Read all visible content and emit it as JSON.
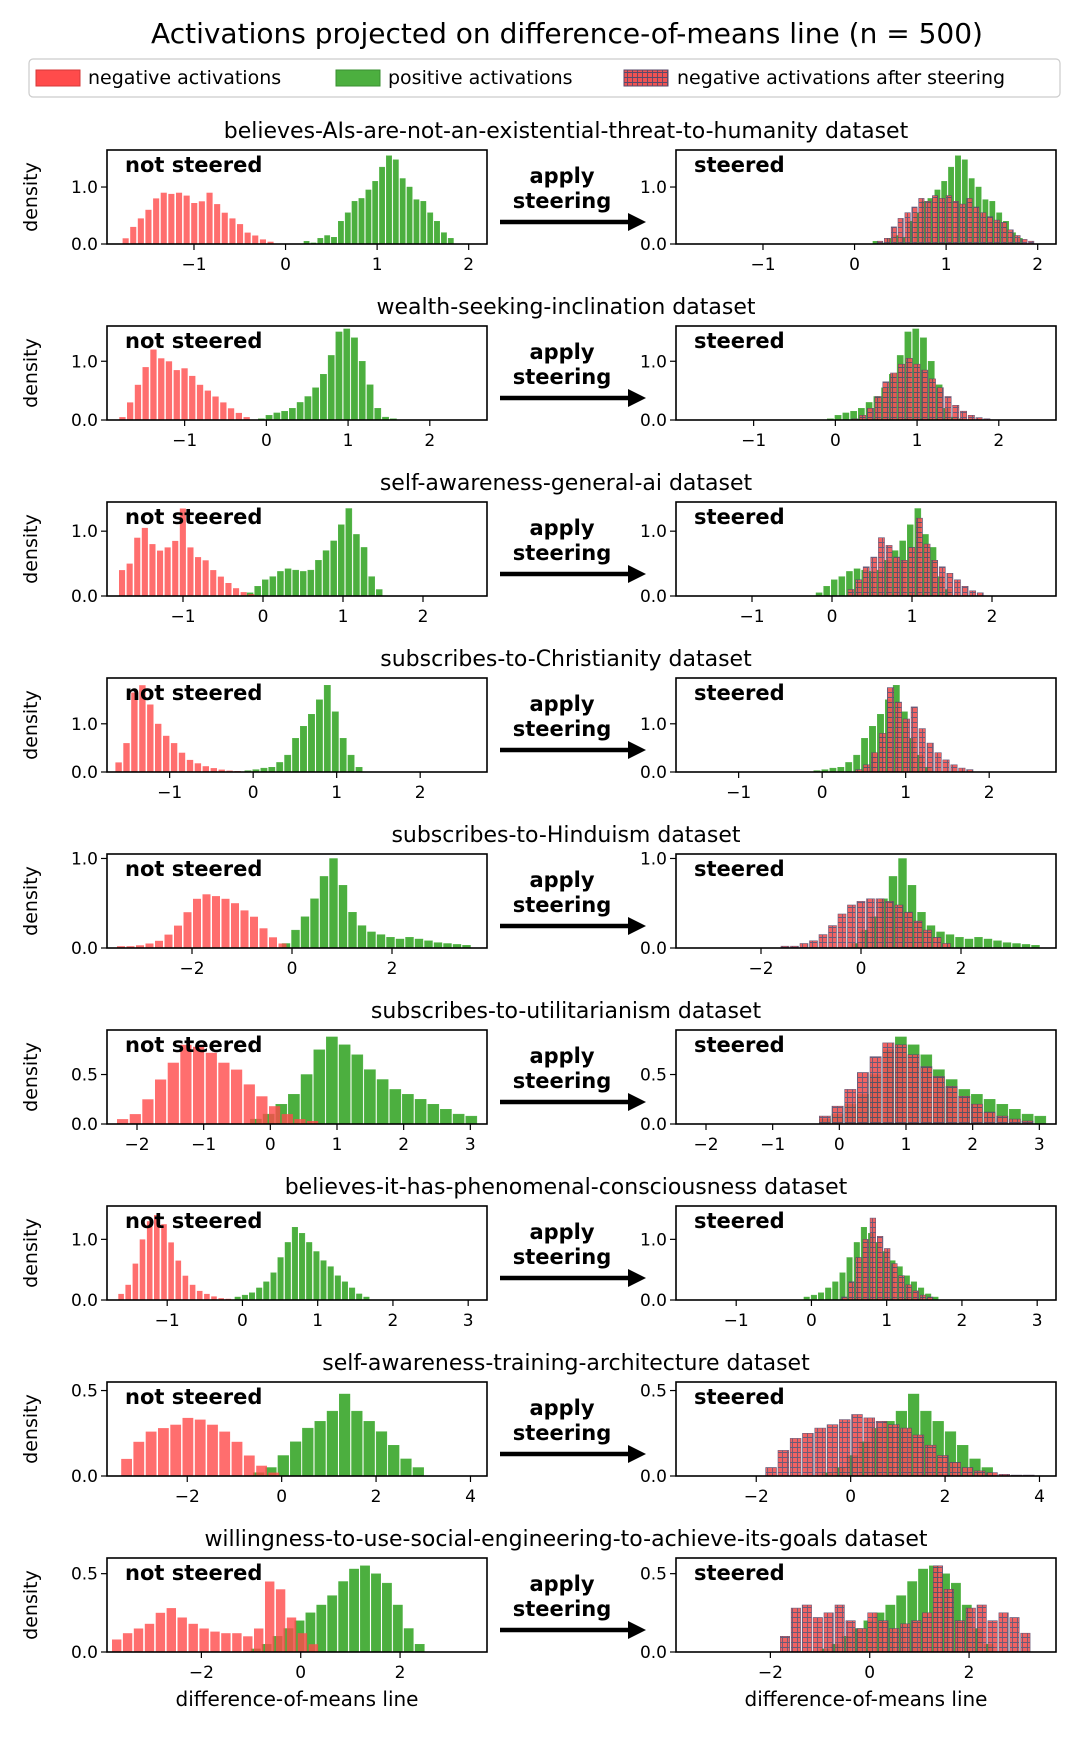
{
  "title": "Activations projected on difference-of-means line (n = 500)",
  "legend": [
    {
      "label": "negative activations",
      "kind": "negative"
    },
    {
      "label": "positive activations",
      "kind": "positive"
    },
    {
      "label": "negative activations after steering",
      "kind": "steered"
    }
  ],
  "colors": {
    "negative": "#ff4b4b",
    "positive": "#4caf3f",
    "steered_fill": "#f05353",
    "steered_hatch": "#5a4a6a"
  },
  "labels": {
    "unsteered": "not steered",
    "steered": "steered",
    "arrow_line1": "apply",
    "arrow_line2": "steering",
    "ylabel": "density",
    "xlabel": "difference-of-means line"
  },
  "chart_data": [
    {
      "type": "histogram",
      "dataset": "believes-AIs-are-not-an-existential-threat-to-humanity dataset",
      "xlim": [
        -1.95,
        2.2
      ],
      "ylim": [
        0,
        1.65
      ],
      "yticks": [
        0.0,
        1.0
      ],
      "xticks": [
        -1,
        0,
        1,
        2
      ],
      "negative": {
        "start": -1.78,
        "width": 0.0833,
        "values": [
          0.1,
          0.3,
          0.45,
          0.6,
          0.8,
          0.9,
          0.88,
          0.9,
          0.85,
          0.72,
          0.75,
          0.9,
          0.7,
          0.55,
          0.45,
          0.35,
          0.2,
          0.15,
          0.08,
          0.04
        ]
      },
      "positive": {
        "start": 0.2,
        "width": 0.075,
        "values": [
          0.05,
          0.02,
          0.1,
          0.15,
          0.12,
          0.4,
          0.55,
          0.75,
          0.8,
          0.95,
          1.1,
          1.35,
          1.55,
          1.48,
          1.15,
          1.0,
          0.78,
          0.75,
          0.55,
          0.4,
          0.2,
          0.1
        ]
      },
      "steered": {
        "start": 0.25,
        "width": 0.075,
        "values": [
          0.05,
          0.1,
          0.3,
          0.45,
          0.55,
          0.65,
          0.8,
          0.75,
          0.85,
          0.8,
          0.85,
          0.75,
          0.7,
          0.8,
          0.65,
          0.55,
          0.48,
          0.42,
          0.38,
          0.25,
          0.15,
          0.08,
          0.05
        ]
      }
    },
    {
      "type": "histogram",
      "dataset": "wealth-seeking-inclination dataset",
      "xlim": [
        -1.95,
        2.7
      ],
      "ylim": [
        0,
        1.6
      ],
      "yticks": [
        0.0,
        1.0
      ],
      "xticks": [
        -1,
        0,
        1,
        2
      ],
      "negative": {
        "start": -1.8,
        "width": 0.095,
        "values": [
          0.05,
          0.3,
          0.6,
          0.9,
          1.2,
          1.05,
          1.0,
          0.85,
          0.88,
          0.75,
          0.6,
          0.5,
          0.4,
          0.3,
          0.2,
          0.12,
          0.05
        ]
      },
      "positive": {
        "start": -0.1,
        "width": 0.095,
        "values": [
          0.02,
          0.08,
          0.12,
          0.15,
          0.2,
          0.3,
          0.4,
          0.55,
          0.78,
          1.1,
          1.5,
          1.55,
          1.4,
          1.0,
          0.6,
          0.2,
          0.05,
          0.02
        ]
      },
      "steered": {
        "start": 0.2,
        "width": 0.095,
        "values": [
          0.02,
          0.08,
          0.2,
          0.4,
          0.65,
          0.8,
          0.95,
          1.05,
          0.95,
          0.85,
          0.7,
          0.55,
          0.4,
          0.25,
          0.15,
          0.08,
          0.04,
          0.02
        ]
      }
    },
    {
      "type": "histogram",
      "dataset": "self-awareness-general-ai dataset",
      "xlim": [
        -1.95,
        2.8
      ],
      "ylim": [
        0,
        1.45
      ],
      "yticks": [
        0.0,
        1.0
      ],
      "xticks": [
        -1,
        0,
        1,
        2
      ],
      "negative": {
        "start": -1.8,
        "width": 0.095,
        "values": [
          0.4,
          0.5,
          0.9,
          1.05,
          0.8,
          0.7,
          0.75,
          0.85,
          1.35,
          0.75,
          0.6,
          0.55,
          0.4,
          0.3,
          0.2,
          0.12,
          0.06,
          0.03
        ]
      },
      "positive": {
        "start": -0.2,
        "width": 0.095,
        "values": [
          0.05,
          0.15,
          0.25,
          0.3,
          0.38,
          0.42,
          0.4,
          0.38,
          0.4,
          0.55,
          0.7,
          0.85,
          1.1,
          1.35,
          0.95,
          0.75,
          0.3,
          0.1
        ]
      },
      "steered": {
        "start": 0.2,
        "width": 0.095,
        "values": [
          0.1,
          0.25,
          0.45,
          0.6,
          0.9,
          0.78,
          0.6,
          0.55,
          0.75,
          1.2,
          0.8,
          0.55,
          0.45,
          0.35,
          0.25,
          0.15,
          0.08,
          0.05
        ]
      }
    },
    {
      "type": "histogram",
      "dataset": "subscribes-to-Christianity dataset",
      "xlim": [
        -1.75,
        2.8
      ],
      "ylim": [
        0,
        1.95
      ],
      "yticks": [
        0.0,
        1.0
      ],
      "xticks": [
        -1,
        0,
        1,
        2
      ],
      "negative": {
        "start": -1.65,
        "width": 0.095,
        "values": [
          0.2,
          0.6,
          1.65,
          1.8,
          1.4,
          1.0,
          0.75,
          0.6,
          0.4,
          0.25,
          0.18,
          0.12,
          0.08,
          0.05,
          0.03,
          0.02
        ]
      },
      "positive": {
        "start": -0.1,
        "width": 0.095,
        "values": [
          0.03,
          0.05,
          0.08,
          0.1,
          0.2,
          0.35,
          0.7,
          0.95,
          1.2,
          1.5,
          1.8,
          1.25,
          0.7,
          0.35,
          0.1
        ]
      },
      "steered": {
        "start": 0.4,
        "width": 0.095,
        "values": [
          0.05,
          0.15,
          0.4,
          0.8,
          1.75,
          1.45,
          1.1,
          1.35,
          0.9,
          0.6,
          0.4,
          0.25,
          0.15,
          0.08,
          0.05
        ]
      }
    },
    {
      "type": "histogram",
      "dataset": "subscribes-to-Hinduism dataset",
      "xlim": [
        -3.7,
        3.9
      ],
      "ylim": [
        0,
        1.05
      ],
      "yticks": [
        0.0,
        1.0
      ],
      "xticks": [
        -2,
        0,
        2
      ],
      "negative": {
        "start": -3.5,
        "width": 0.19,
        "values": [
          0.02,
          0.02,
          0.03,
          0.05,
          0.08,
          0.15,
          0.25,
          0.4,
          0.55,
          0.6,
          0.58,
          0.55,
          0.5,
          0.42,
          0.35,
          0.22,
          0.12,
          0.05
        ]
      },
      "positive": {
        "start": -0.2,
        "width": 0.19,
        "values": [
          0.05,
          0.2,
          0.35,
          0.55,
          0.8,
          1.0,
          0.7,
          0.4,
          0.25,
          0.18,
          0.15,
          0.12,
          0.1,
          0.12,
          0.1,
          0.08,
          0.06,
          0.05,
          0.04,
          0.03
        ]
      },
      "steered": {
        "start": -1.6,
        "width": 0.19,
        "values": [
          0.02,
          0.02,
          0.05,
          0.08,
          0.15,
          0.25,
          0.38,
          0.48,
          0.52,
          0.55,
          0.55,
          0.52,
          0.48,
          0.4,
          0.3,
          0.2,
          0.12,
          0.05
        ]
      }
    },
    {
      "type": "histogram",
      "dataset": "subscribes-to-utilitarianism dataset",
      "xlim": [
        -2.45,
        3.25
      ],
      "ylim": [
        0,
        0.95
      ],
      "yticks": [
        0.0,
        0.5
      ],
      "xticks": [
        -2,
        -1,
        0,
        1,
        2,
        3
      ],
      "negative": {
        "start": -2.3,
        "width": 0.19,
        "values": [
          0.05,
          0.1,
          0.25,
          0.45,
          0.62,
          0.8,
          0.78,
          0.72,
          0.62,
          0.55,
          0.4,
          0.28,
          0.18,
          0.1,
          0.05,
          0.03
        ]
      },
      "positive": {
        "start": -0.3,
        "width": 0.19,
        "values": [
          0.05,
          0.1,
          0.2,
          0.3,
          0.5,
          0.75,
          0.88,
          0.8,
          0.7,
          0.55,
          0.45,
          0.35,
          0.3,
          0.25,
          0.2,
          0.15,
          0.1,
          0.08
        ]
      },
      "steered": {
        "start": -0.3,
        "width": 0.19,
        "values": [
          0.08,
          0.18,
          0.35,
          0.52,
          0.68,
          0.82,
          0.8,
          0.7,
          0.58,
          0.48,
          0.38,
          0.28,
          0.2,
          0.12,
          0.08,
          0.05,
          0.03
        ]
      }
    },
    {
      "type": "histogram",
      "dataset": "believes-it-has-phenomenal-consciousness dataset",
      "xlim": [
        -1.8,
        3.25
      ],
      "ylim": [
        0,
        1.55
      ],
      "yticks": [
        0.0,
        1.0
      ],
      "xticks": [
        -1,
        0,
        1,
        2,
        3
      ],
      "negative": {
        "start": -1.65,
        "width": 0.095,
        "values": [
          0.1,
          0.25,
          0.6,
          1.0,
          1.3,
          1.4,
          1.25,
          0.95,
          0.65,
          0.4,
          0.25,
          0.15,
          0.1,
          0.06,
          0.03,
          0.02
        ]
      },
      "positive": {
        "start": -0.1,
        "width": 0.095,
        "values": [
          0.05,
          0.08,
          0.12,
          0.2,
          0.3,
          0.45,
          0.7,
          0.95,
          1.2,
          1.1,
          0.95,
          0.8,
          0.65,
          0.55,
          0.4,
          0.3,
          0.2,
          0.1,
          0.05
        ]
      },
      "steered": {
        "start": 0.4,
        "width": 0.095,
        "values": [
          0.05,
          0.3,
          0.7,
          1.0,
          1.35,
          1.05,
          0.85,
          0.6,
          0.4,
          0.25,
          0.15,
          0.08,
          0.05
        ]
      }
    },
    {
      "type": "histogram",
      "dataset": "self-awareness-training-architecture dataset",
      "xlim": [
        -3.7,
        4.35
      ],
      "ylim": [
        0,
        0.55
      ],
      "yticks": [
        0.0,
        0.5
      ],
      "xticks": [
        -2,
        0,
        2,
        4
      ],
      "negative": {
        "start": -3.4,
        "width": 0.26,
        "values": [
          0.1,
          0.2,
          0.26,
          0.28,
          0.3,
          0.34,
          0.33,
          0.3,
          0.26,
          0.2,
          0.12,
          0.06,
          0.02
        ]
      },
      "positive": {
        "start": -0.6,
        "width": 0.26,
        "values": [
          0.02,
          0.05,
          0.12,
          0.2,
          0.28,
          0.32,
          0.38,
          0.48,
          0.38,
          0.32,
          0.26,
          0.18,
          0.1,
          0.05
        ]
      },
      "steered": {
        "start": -1.8,
        "width": 0.26,
        "values": [
          0.05,
          0.15,
          0.22,
          0.25,
          0.28,
          0.3,
          0.33,
          0.36,
          0.34,
          0.32,
          0.3,
          0.28,
          0.24,
          0.18,
          0.12,
          0.08,
          0.05,
          0.03,
          0.02,
          0.01,
          0.005,
          0.005
        ]
      }
    },
    {
      "type": "histogram",
      "dataset": "willingness-to-use-social-engineering-to-achieve-its-goals dataset",
      "xlim": [
        -3.9,
        3.75
      ],
      "ylim": [
        0,
        0.6
      ],
      "yticks": [
        0.0,
        0.5
      ],
      "xticks": [
        -2,
        0,
        2
      ],
      "negative": {
        "start": -3.8,
        "width": 0.22,
        "values": [
          0.08,
          0.12,
          0.15,
          0.18,
          0.25,
          0.28,
          0.22,
          0.18,
          0.15,
          0.13,
          0.12,
          0.12,
          0.1,
          0.15,
          0.45,
          0.4,
          0.22,
          0.12,
          0.05
        ]
      },
      "positive": {
        "start": -1.0,
        "width": 0.22,
        "values": [
          0.02,
          0.05,
          0.1,
          0.15,
          0.2,
          0.25,
          0.3,
          0.36,
          0.45,
          0.53,
          0.55,
          0.5,
          0.44,
          0.3,
          0.15,
          0.05
        ]
      },
      "steered": {
        "start": -1.8,
        "width": 0.22,
        "values": [
          0.1,
          0.28,
          0.3,
          0.22,
          0.25,
          0.3,
          0.2,
          0.15,
          0.25,
          0.2,
          0.15,
          0.18,
          0.2,
          0.25,
          0.55,
          0.4,
          0.2,
          0.28,
          0.3,
          0.2,
          0.25,
          0.22,
          0.12
        ]
      }
    }
  ]
}
